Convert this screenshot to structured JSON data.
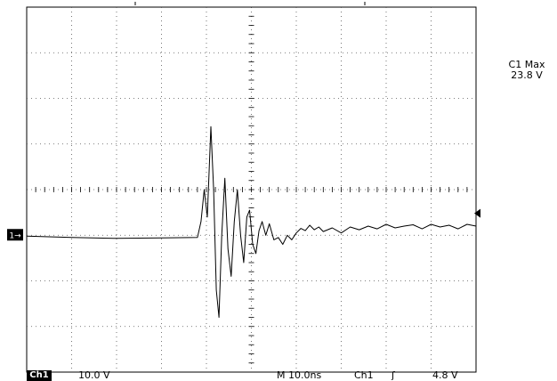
{
  "measurement": {
    "label": "C1 Max",
    "value": "23.8 V"
  },
  "status_bar": {
    "channel_box": "Ch1",
    "volts_per_div": "10.0 V",
    "time_per_div": "M 10.0ns",
    "trigger_source": "Ch1",
    "trigger_slope": "ʃ",
    "trigger_level": "4.8 V"
  },
  "ground_marker": "1→",
  "chart_data": {
    "type": "line",
    "title": "",
    "xlabel": "",
    "ylabel": "",
    "xlim": [
      0,
      100
    ],
    "ylim": [
      -30,
      50
    ],
    "grid": true,
    "horizontal_divisions": 10,
    "vertical_divisions": 8,
    "units": {
      "x": "ns",
      "y": "V"
    },
    "series": [
      {
        "values": [
          [
            0,
            -0.2
          ],
          [
            10,
            -0.5
          ],
          [
            20,
            -0.7
          ],
          [
            30,
            -0.6
          ],
          [
            38,
            -0.5
          ],
          [
            38.8,
            3
          ],
          [
            39.5,
            10
          ],
          [
            40.2,
            4
          ],
          [
            41.0,
            23.8
          ],
          [
            41.6,
            10
          ],
          [
            42.2,
            -12
          ],
          [
            42.8,
            -18
          ],
          [
            43.4,
            0
          ],
          [
            44.1,
            12.5
          ],
          [
            44.8,
            -3
          ],
          [
            45.5,
            -9
          ],
          [
            46.2,
            3
          ],
          [
            46.9,
            10
          ],
          [
            47.6,
            0
          ],
          [
            48.3,
            -6
          ],
          [
            49.0,
            4
          ],
          [
            49.6,
            5.5
          ],
          [
            50.3,
            -2
          ],
          [
            51.0,
            -4
          ],
          [
            51.7,
            1
          ],
          [
            52.4,
            3
          ],
          [
            53.2,
            0
          ],
          [
            54.0,
            2.5
          ],
          [
            55.0,
            -1
          ],
          [
            56.0,
            -0.5
          ],
          [
            57.0,
            -2
          ],
          [
            58.0,
            0
          ],
          [
            59.0,
            -1
          ],
          [
            60.0,
            0.5
          ],
          [
            61.0,
            1.5
          ],
          [
            62.0,
            1
          ],
          [
            63.0,
            2.2
          ],
          [
            64.0,
            1.2
          ],
          [
            65.0,
            1.8
          ],
          [
            66.0,
            0.8
          ],
          [
            68.0,
            1.6
          ],
          [
            70.0,
            0.5
          ],
          [
            72.0,
            1.8
          ],
          [
            74.0,
            1.2
          ],
          [
            76.0,
            2
          ],
          [
            78.0,
            1.4
          ],
          [
            80.0,
            2.4
          ],
          [
            82.0,
            1.6
          ],
          [
            84.0,
            2
          ],
          [
            86.0,
            2.3
          ],
          [
            88.0,
            1.4
          ],
          [
            90.0,
            2.4
          ],
          [
            92.0,
            1.8
          ],
          [
            94.0,
            2.2
          ],
          [
            96.0,
            1.4
          ],
          [
            98.0,
            2.4
          ],
          [
            100,
            2.0
          ]
        ]
      }
    ]
  }
}
